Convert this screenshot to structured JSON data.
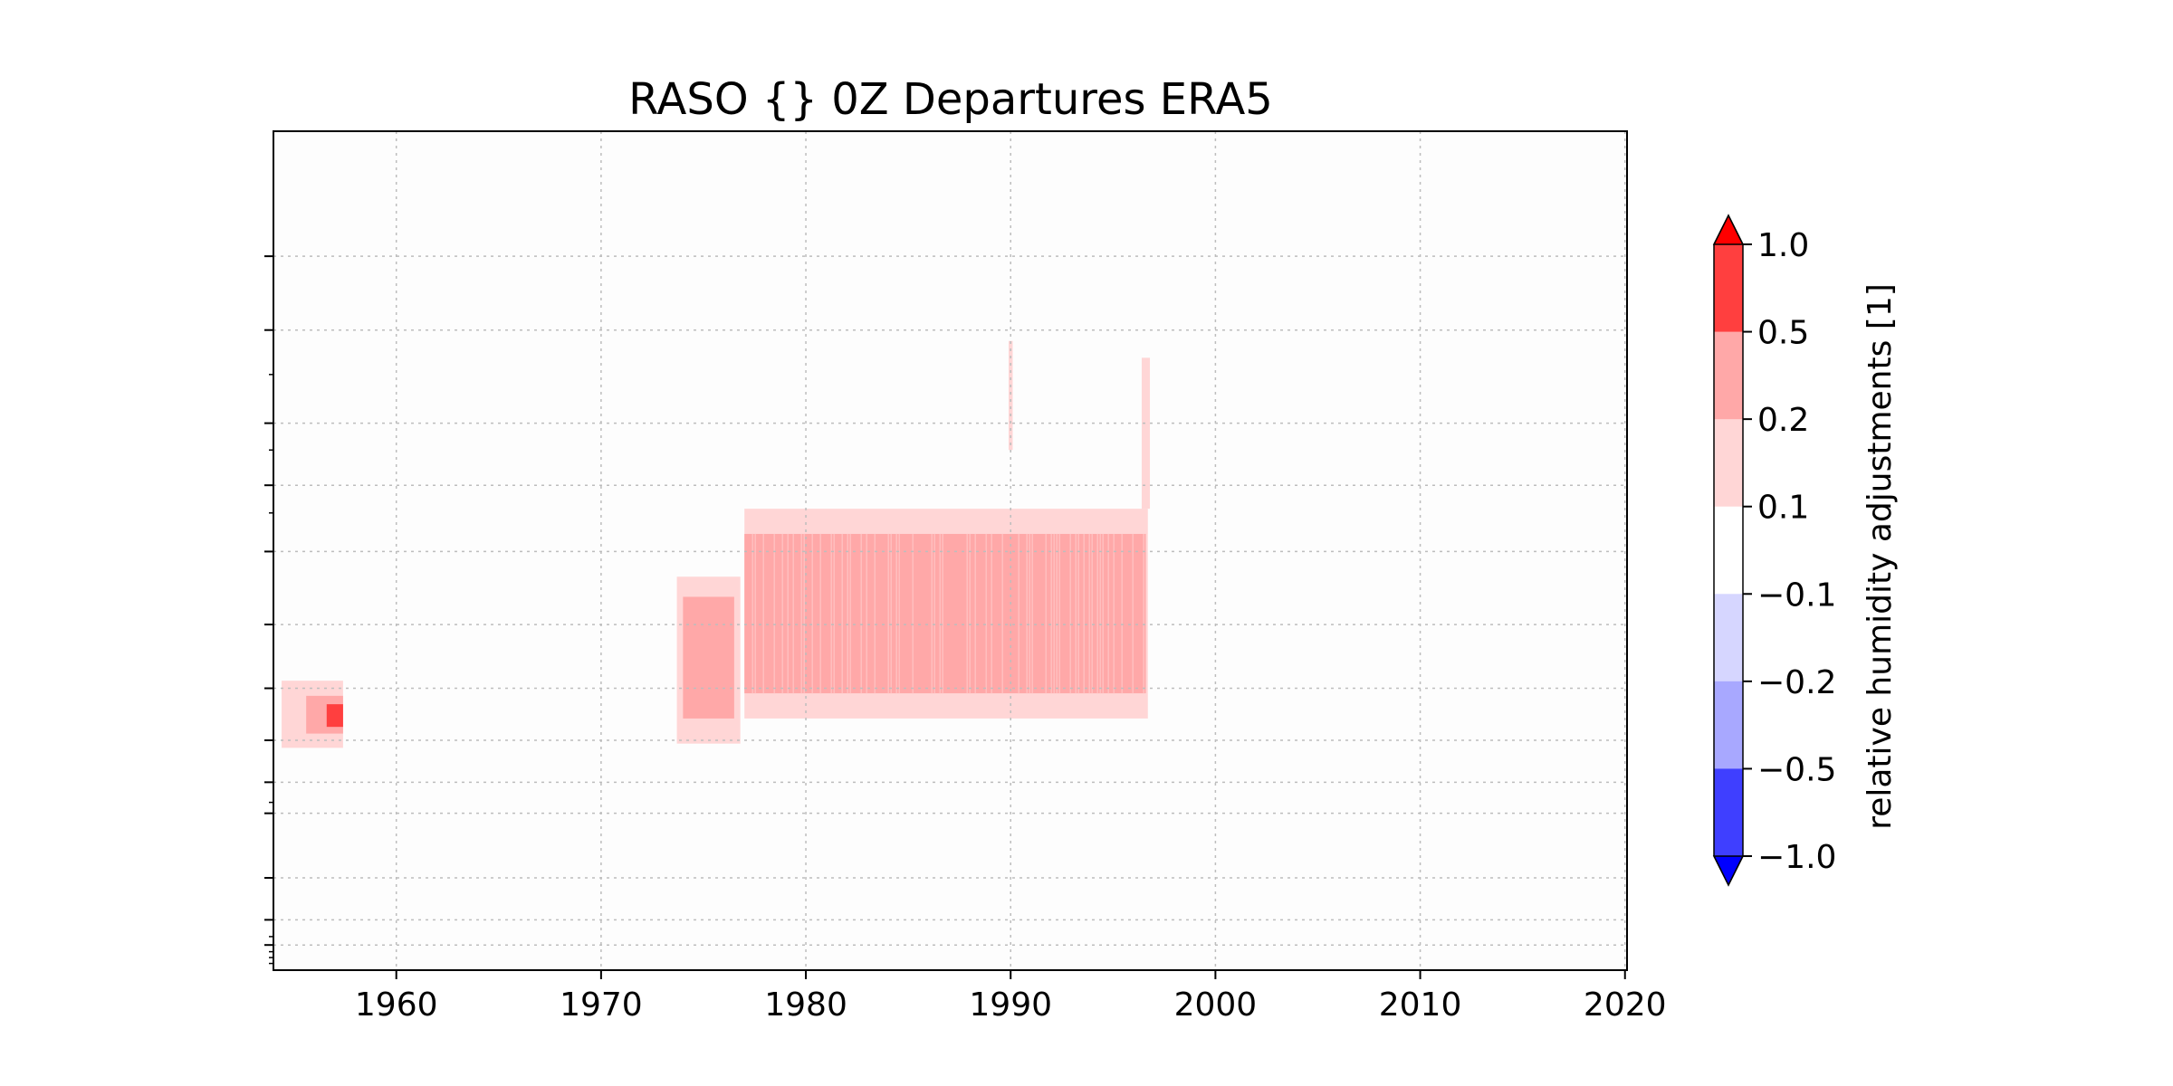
{
  "chart_data": {
    "type": "heatmap",
    "title": "RASO {}  0Z Departures ERA5",
    "xlabel": "",
    "ylabel": "",
    "xlim": [
      1954.0,
      2020.1
    ],
    "x_ticks": [
      1960,
      1970,
      1980,
      1990,
      2000,
      2010,
      2020
    ],
    "x_tick_labels": [
      "1960",
      "1970",
      "1980",
      "1990",
      "2000",
      "2010",
      "2020"
    ],
    "y_axis": {
      "tick_labels_shown": false,
      "ylim": [
        0,
        1
      ],
      "major_ticks": [
        0.149,
        0.237,
        0.348,
        0.422,
        0.501,
        0.588,
        0.664,
        0.726,
        0.776,
        0.813,
        0.89,
        0.94,
        0.97
      ],
      "minor_ticks": [
        0.29,
        0.38,
        0.455,
        0.8,
        0.96,
        0.978,
        0.985,
        0.992
      ]
    },
    "grid": true,
    "plot_background": "#fdfdfd",
    "colorbar": {
      "label": "relative humidity adjustments [1]",
      "levels": [
        -1.0,
        -0.5,
        -0.2,
        -0.1,
        0.1,
        0.2,
        0.5,
        1.0
      ],
      "tick_labels": [
        "−1.0",
        "−0.5",
        "−0.2",
        "−0.1",
        "0.1",
        "0.2",
        "0.5",
        "1.0"
      ],
      "colors": [
        "#3f3fff",
        "#a8a8ff",
        "#d6d6ff",
        "#ffffff",
        "#ffd6d6",
        "#ffa8a8",
        "#ff3f3f"
      ],
      "extend_min_color": "#0000ff",
      "extend_max_color": "#ff0000"
    },
    "regions": [
      {
        "x": [
          1973.7,
          1976.8
        ],
        "y": [
          0.531,
          0.73
        ],
        "level": "0.1 to 0.2"
      },
      {
        "x": [
          1974.0,
          1976.5
        ],
        "y": [
          0.555,
          0.7
        ],
        "level": "0.2 to 0.5"
      },
      {
        "x": [
          1977.0,
          1996.7
        ],
        "y": [
          0.45,
          0.7
        ],
        "level": "0.1 to 0.2"
      },
      {
        "x": [
          1977.0,
          1996.6
        ],
        "y": [
          0.48,
          0.67
        ],
        "level": "0.2 to 0.5"
      },
      {
        "x": [
          1989.9,
          1990.1
        ],
        "y": [
          0.25,
          0.38
        ],
        "level": "0.1 to 0.2"
      },
      {
        "x": [
          1996.4,
          1996.8
        ],
        "y": [
          0.27,
          0.45
        ],
        "level": "0.1 to 0.2"
      },
      {
        "x": [
          1954.4,
          1957.4
        ],
        "y": [
          0.655,
          0.735
        ],
        "level": "0.1 to 0.2"
      },
      {
        "x": [
          1955.6,
          1957.4
        ],
        "y": [
          0.673,
          0.718
        ],
        "level": "0.2 to 0.5"
      },
      {
        "x": [
          1956.6,
          1957.4
        ],
        "y": [
          0.683,
          0.71
        ],
        "level": "0.5 to 1.0"
      }
    ]
  }
}
